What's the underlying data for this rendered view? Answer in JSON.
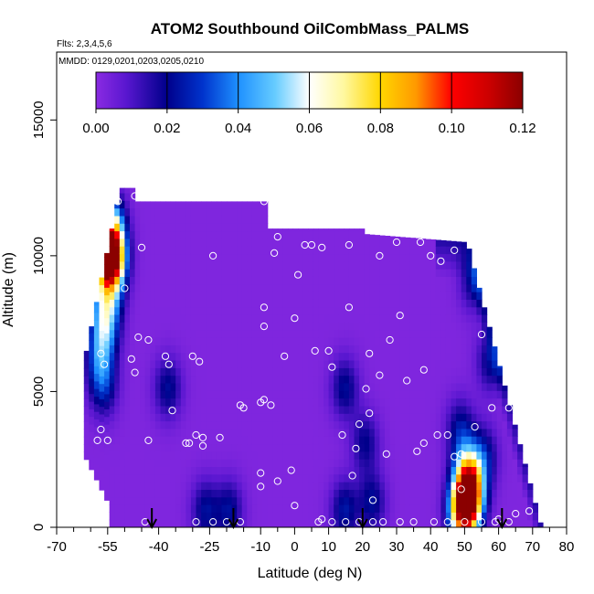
{
  "chart_data": {
    "type": "heatmap",
    "title": "ATOM2 Southbound OilCombMass_PALMS",
    "flights_label": "Flts: 2,3,4,5,6",
    "dates_label": "MMDD: 0129,0201,0203,0205,0210",
    "xlabel": "Latitude (deg N)",
    "ylabel": "Altitude (m)",
    "xlim": [
      -70,
      80
    ],
    "ylim": [
      0,
      17500
    ],
    "x_ticks": [
      -70,
      -55,
      -40,
      -25,
      -10,
      0,
      10,
      20,
      30,
      40,
      50,
      60,
      70,
      80
    ],
    "x_minor_ticks": [
      -65,
      -60,
      -50,
      -45,
      -35,
      -30,
      -20,
      -15,
      -5,
      5,
      15,
      25,
      35,
      45,
      55,
      65,
      75
    ],
    "y_ticks": [
      0,
      5000,
      10000,
      15000
    ],
    "colorbar": {
      "min": 0.0,
      "max": 0.12,
      "ticks": [
        "0.00",
        "0.02",
        "0.04",
        "0.06",
        "0.08",
        "0.10",
        "0.12"
      ],
      "colors": [
        "#8a2be2",
        "#00008b",
        "#1e90ff",
        "#ffffff",
        "#ffd700",
        "#ff0000",
        "#8b0000"
      ]
    },
    "colors": {
      "background_field": "#8629f2",
      "points": "#ffffff",
      "arrows": "#000000"
    },
    "arrows_at_latitude": [
      -42,
      -18,
      20,
      61
    ],
    "anomalies": [
      {
        "lat": -55,
        "alt": 10000,
        "value": 0.08
      },
      {
        "lat": -55,
        "alt": 9500,
        "value": 0.075
      },
      {
        "lat": -55,
        "alt": 11000,
        "value": 0.05
      },
      {
        "lat": -56,
        "alt": 8000,
        "value": 0.04
      },
      {
        "lat": -57,
        "alt": 7000,
        "value": 0.03
      },
      {
        "lat": -58,
        "alt": 6000,
        "value": 0.025
      },
      {
        "lat": -57,
        "alt": 5000,
        "value": 0.02
      },
      {
        "lat": -38,
        "alt": 5000,
        "value": 0.02
      },
      {
        "lat": -27,
        "alt": 500,
        "value": 0.02
      },
      {
        "lat": -20,
        "alt": 500,
        "value": 0.02
      },
      {
        "lat": 14,
        "alt": 5000,
        "value": 0.02
      },
      {
        "lat": 20,
        "alt": 3000,
        "value": 0.018
      },
      {
        "lat": 14,
        "alt": 500,
        "value": 0.022
      },
      {
        "lat": 22,
        "alt": 800,
        "value": 0.02
      },
      {
        "lat": 48,
        "alt": 3500,
        "value": 0.02
      },
      {
        "lat": 55,
        "alt": 2500,
        "value": 0.02
      },
      {
        "lat": 52,
        "alt": 9000,
        "value": 0.02
      },
      {
        "lat": 57,
        "alt": 6000,
        "value": 0.02
      },
      {
        "lat": 49,
        "alt": 500,
        "value": 0.11
      },
      {
        "lat": 51,
        "alt": 1200,
        "value": 0.08
      },
      {
        "lat": 50,
        "alt": 2000,
        "value": 0.04
      }
    ],
    "sample_points": [
      [
        -56,
        11700
      ],
      [
        -52,
        12000
      ],
      [
        -47,
        12200
      ],
      [
        -45,
        12200
      ],
      [
        -45,
        10300
      ],
      [
        -50,
        8800
      ],
      [
        -46,
        7000
      ],
      [
        -43,
        6900
      ],
      [
        -38,
        6300
      ],
      [
        -37,
        6000
      ],
      [
        -30,
        6300
      ],
      [
        -28,
        6100
      ],
      [
        -24,
        10000
      ],
      [
        -9,
        12000
      ],
      [
        -9,
        8100
      ],
      [
        -9,
        7400
      ],
      [
        -5,
        10700
      ],
      [
        -6,
        10100
      ],
      [
        1,
        9300
      ],
      [
        3,
        10400
      ],
      [
        5,
        10400
      ],
      [
        8,
        10300
      ],
      [
        0,
        7700
      ],
      [
        6,
        6500
      ],
      [
        11,
        5900
      ],
      [
        -3,
        6300
      ],
      [
        -16,
        4500
      ],
      [
        -15,
        4400
      ],
      [
        -10,
        4600
      ],
      [
        -9,
        4700
      ],
      [
        -7,
        4500
      ],
      [
        -56,
        6000
      ],
      [
        -57,
        6400
      ],
      [
        -48,
        6200
      ],
      [
        -47,
        5700
      ],
      [
        -36,
        4300
      ],
      [
        -31,
        3100
      ],
      [
        -29,
        3400
      ],
      [
        -27,
        3300
      ],
      [
        -27,
        3000
      ],
      [
        -22,
        3300
      ],
      [
        -58,
        3200
      ],
      [
        -57,
        3600
      ],
      [
        -55,
        3200
      ],
      [
        -43,
        3200
      ],
      [
        -32,
        3100
      ],
      [
        -44,
        200
      ],
      [
        -29,
        200
      ],
      [
        -24,
        200
      ],
      [
        -20,
        200
      ],
      [
        -16,
        200
      ],
      [
        -10,
        1500
      ],
      [
        -10,
        2000
      ],
      [
        -5,
        1700
      ],
      [
        -1,
        2100
      ],
      [
        0,
        800
      ],
      [
        7,
        200
      ],
      [
        8,
        300
      ],
      [
        11,
        200
      ],
      [
        15,
        200
      ],
      [
        19,
        200
      ],
      [
        23,
        1000
      ],
      [
        23,
        200
      ],
      [
        26,
        200
      ],
      [
        31,
        200
      ],
      [
        35,
        200
      ],
      [
        41,
        200
      ],
      [
        45,
        200
      ],
      [
        50,
        200
      ],
      [
        55,
        200
      ],
      [
        59,
        200
      ],
      [
        60,
        300
      ],
      [
        63,
        200
      ],
      [
        69,
        600
      ],
      [
        65,
        500
      ],
      [
        14,
        3400
      ],
      [
        18,
        2900
      ],
      [
        17,
        1900
      ],
      [
        19,
        3800
      ],
      [
        21,
        5100
      ],
      [
        22,
        4200
      ],
      [
        25,
        5600
      ],
      [
        27,
        2700
      ],
      [
        33,
        5400
      ],
      [
        38,
        5800
      ],
      [
        36,
        2800
      ],
      [
        38,
        3100
      ],
      [
        42,
        3400
      ],
      [
        45,
        3400
      ],
      [
        47,
        2600
      ],
      [
        49,
        1400
      ],
      [
        49,
        2700
      ],
      [
        53,
        3700
      ],
      [
        58,
        4400
      ],
      [
        63,
        4400
      ],
      [
        28,
        6900
      ],
      [
        31,
        7800
      ],
      [
        22,
        6400
      ],
      [
        16,
        10400
      ],
      [
        25,
        10000
      ],
      [
        30,
        10500
      ],
      [
        37,
        10500
      ],
      [
        40,
        10000
      ],
      [
        43,
        9800
      ],
      [
        47,
        10200
      ],
      [
        48,
        10700
      ],
      [
        55,
        9600
      ],
      [
        55,
        7100
      ],
      [
        60,
        7000
      ],
      [
        64,
        6900
      ],
      [
        10,
        6500
      ],
      [
        16,
        8100
      ]
    ]
  }
}
